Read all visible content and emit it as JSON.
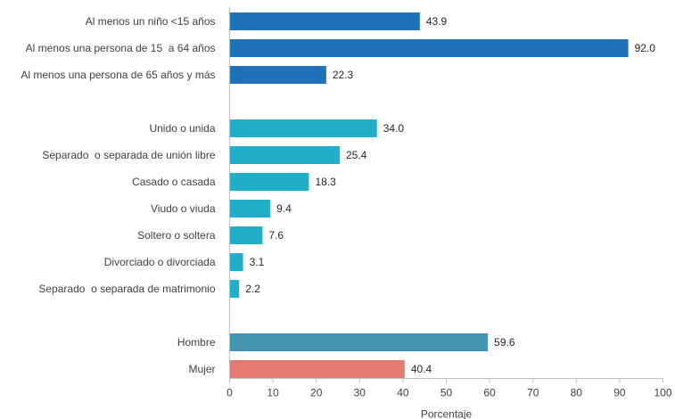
{
  "chart_data": {
    "type": "bar",
    "orientation": "horizontal",
    "xlabel": "Porcentaje",
    "ylabel": "",
    "xlim": [
      0,
      100
    ],
    "xticks": [
      0,
      10,
      20,
      30,
      40,
      50,
      60,
      70,
      80,
      90,
      100
    ],
    "grid": false,
    "legend": "none",
    "groups": [
      {
        "color": "#1f72b8",
        "bars": [
          {
            "label": "Al menos un niño <15 años",
            "value": 43.9,
            "value_label": "43.9"
          },
          {
            "label": "Al menos una persona de 15  a 64 años",
            "value": 92.0,
            "value_label": "92.0"
          },
          {
            "label": "Al menos una persona de 65 años y más",
            "value": 22.3,
            "value_label": "22.3"
          }
        ]
      },
      {
        "color": "#21aec7",
        "bars": [
          {
            "label": "Unido o unida",
            "value": 34.0,
            "value_label": "34.0"
          },
          {
            "label": "Separado  o separada de unión libre",
            "value": 25.4,
            "value_label": "25.4"
          },
          {
            "label": "Casado o casada",
            "value": 18.3,
            "value_label": "18.3"
          },
          {
            "label": "Viudo o viuda",
            "value": 9.4,
            "value_label": "9.4"
          },
          {
            "label": "Soltero o soltera",
            "value": 7.6,
            "value_label": "7.6"
          },
          {
            "label": "Divorciado o divorciada",
            "value": 3.1,
            "value_label": "3.1"
          },
          {
            "label": "Separado  o separada de matrimonio",
            "value": 2.2,
            "value_label": "2.2"
          }
        ]
      },
      {
        "color": "",
        "bars": [
          {
            "label": "Hombre",
            "value": 59.6,
            "value_label": "59.6",
            "color": "#4493b0"
          },
          {
            "label": "Mujer",
            "value": 40.4,
            "value_label": "40.4",
            "color": "#e57a70"
          }
        ]
      }
    ]
  }
}
